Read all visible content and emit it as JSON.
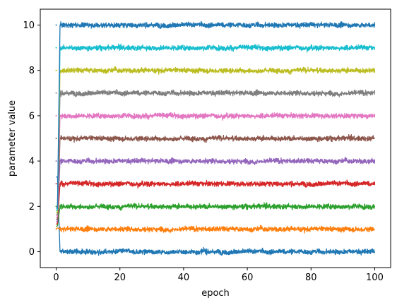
{
  "chart_data": {
    "type": "line",
    "title": "",
    "xlabel": "epoch",
    "ylabel": "parameter value",
    "xlim": [
      -5,
      105
    ],
    "ylim": [
      -0.7,
      10.7
    ],
    "xticks": [
      0,
      20,
      40,
      60,
      80,
      100
    ],
    "yticks": [
      0,
      2,
      4,
      6,
      8,
      10
    ],
    "grid": false,
    "legend": "none",
    "noise_amplitude": 0.18,
    "series": [
      {
        "color": "#1f77b4",
        "start": 3.3,
        "level": 0
      },
      {
        "color": "#ff7f0e",
        "start": 1.0,
        "level": 1
      },
      {
        "color": "#2ca02c",
        "start": 1.1,
        "level": 2
      },
      {
        "color": "#d62728",
        "start": 1.2,
        "level": 3
      },
      {
        "color": "#9467bd",
        "start": 1.3,
        "level": 4
      },
      {
        "color": "#8c564b",
        "start": 1.4,
        "level": 5
      },
      {
        "color": "#e377c2",
        "start": 1.5,
        "level": 6
      },
      {
        "color": "#7f7f7f",
        "start": 1.6,
        "level": 7
      },
      {
        "color": "#bcbd22",
        "start": 1.7,
        "level": 8
      },
      {
        "color": "#17becf",
        "start": 1.8,
        "level": 9
      },
      {
        "color": "#1f77b4",
        "start": 1.9,
        "level": 10
      }
    ]
  }
}
